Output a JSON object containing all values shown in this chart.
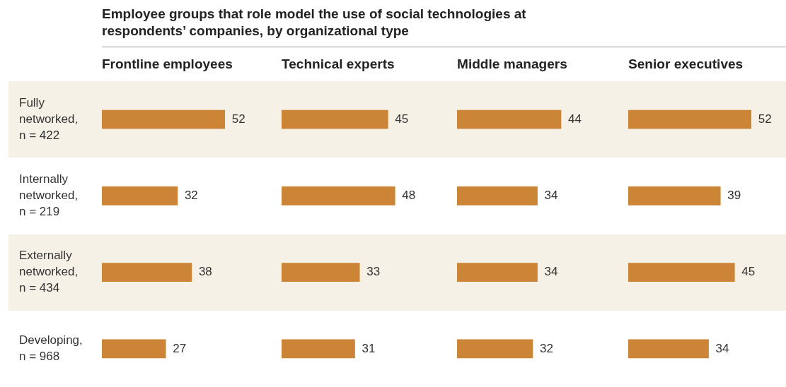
{
  "chart_data": [
    {
      "type": "other",
      "title": "Employee groups that role model the use of social technologies at respondents’ companies, by organizational type"
    },
    {
      "type": "bar",
      "orientation": "horizontal",
      "title": "Frontline employees",
      "categories": [
        "Fully networked, n = 422",
        "Internally networked, n = 219",
        "Externally networked, n = 434",
        "Developing, n = 968"
      ],
      "values": [
        52,
        32,
        38,
        27
      ],
      "color": "#cc8436",
      "data_labels": true,
      "tick_labels": "y"
    },
    {
      "type": "bar",
      "orientation": "horizontal",
      "title": "Technical experts",
      "categories": [
        null,
        null,
        null,
        null
      ],
      "values": [
        45,
        48,
        33,
        31
      ],
      "color": "#cc8436",
      "data_labels": true,
      "tick_labels": false
    },
    {
      "type": "bar",
      "orientation": "horizontal",
      "title": "Middle managers",
      "categories": [
        null,
        null,
        null,
        null
      ],
      "values": [
        44,
        34,
        34,
        32
      ],
      "color": "#cc8436",
      "data_labels": true,
      "tick_labels": false
    },
    {
      "type": "bar",
      "orientation": "horizontal",
      "title": "Senior executives",
      "categories": [
        null,
        null,
        null,
        null
      ],
      "values": [
        52,
        39,
        45,
        34
      ],
      "color": "#cc8436",
      "data_labels": true,
      "tick_labels": false
    }
  ]
}
